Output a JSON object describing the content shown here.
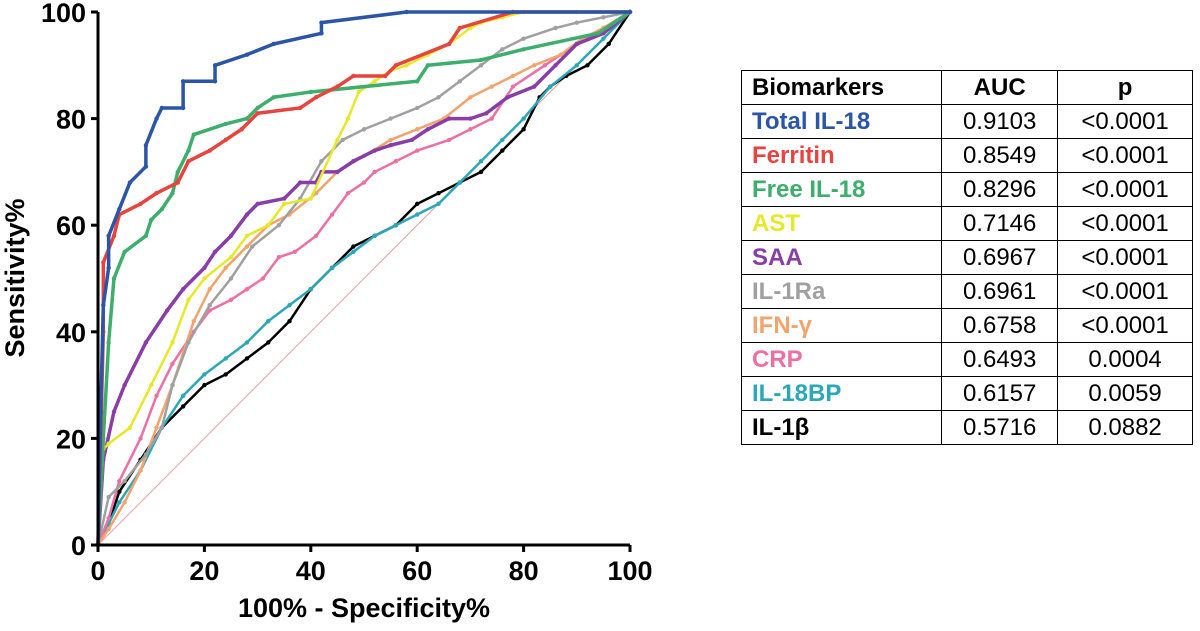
{
  "chart_data": {
    "type": "line",
    "xlabel": "100% - Specificity%",
    "ylabel": "Sensitivity%",
    "xlim": [
      0,
      100
    ],
    "ylim": [
      0,
      100
    ],
    "x_ticks": [
      "0",
      "20",
      "40",
      "60",
      "80",
      "100"
    ],
    "y_ticks": [
      "0",
      "20",
      "40",
      "60",
      "80",
      "100"
    ],
    "grid": false,
    "legend": "table-right",
    "reference_line": {
      "x": [
        0,
        100
      ],
      "y": [
        0,
        100
      ],
      "color": "#e8a0a0"
    },
    "series": [
      {
        "name": "Total IL-18",
        "color": "#2a55a8",
        "x": [
          0,
          0.5,
          1,
          2,
          2,
          4,
          6,
          9,
          9,
          11,
          12,
          16,
          16,
          22,
          22,
          28,
          33,
          42,
          42,
          58,
          100
        ],
        "y": [
          0,
          25,
          45,
          52,
          58,
          63,
          68,
          71,
          75,
          80,
          82,
          82,
          87,
          87,
          90,
          92,
          94,
          96,
          98,
          100,
          100
        ]
      },
      {
        "name": "Ferritin",
        "color": "#e8433c",
        "x": [
          0,
          1,
          1,
          3,
          4,
          8,
          11,
          15,
          17,
          21,
          24,
          27,
          30,
          38,
          41,
          45,
          48,
          54,
          56,
          66,
          68,
          78,
          100
        ],
        "y": [
          0,
          40,
          53,
          58,
          62,
          64,
          66,
          68,
          72,
          74,
          76,
          78,
          81,
          82,
          84,
          86,
          88,
          88,
          90,
          94,
          97,
          100,
          100
        ]
      },
      {
        "name": "Free IL-18",
        "color": "#3daf6c",
        "x": [
          0,
          1,
          2,
          3,
          5,
          9,
          10,
          12,
          14,
          15,
          17,
          18,
          24,
          28,
          30,
          33,
          40,
          60,
          62,
          72,
          80,
          94,
          100
        ],
        "y": [
          0,
          20,
          38,
          50,
          55,
          58,
          61,
          63,
          66,
          70,
          74,
          77,
          79,
          80,
          82,
          84,
          85,
          87,
          90,
          91,
          93,
          96,
          100
        ]
      },
      {
        "name": "AST",
        "color": "#e8e82a",
        "x": [
          0,
          1,
          2,
          6,
          10,
          14,
          17,
          20,
          25,
          28,
          32,
          35,
          40,
          45,
          47,
          49,
          52,
          55,
          58,
          62,
          66,
          70,
          72,
          76,
          80,
          90,
          100
        ],
        "y": [
          0,
          18,
          19,
          22,
          30,
          38,
          46,
          50,
          54,
          58,
          60,
          64,
          65,
          76,
          80,
          85,
          87,
          89,
          90,
          92,
          94,
          97,
          98,
          99,
          100,
          100,
          100
        ]
      },
      {
        "name": "SAA",
        "color": "#8a3da8",
        "x": [
          0,
          1,
          3,
          5,
          9,
          13,
          16,
          20,
          22,
          25,
          28,
          30,
          35,
          38,
          41,
          42,
          45,
          48,
          52,
          55,
          59,
          62,
          66,
          70,
          73,
          77,
          82,
          86,
          90,
          95,
          100
        ],
        "y": [
          0,
          16,
          25,
          30,
          38,
          44,
          48,
          52,
          55,
          58,
          62,
          64,
          65,
          68,
          68,
          70,
          70,
          72,
          74,
          75,
          76,
          78,
          80,
          80,
          81,
          84,
          86,
          90,
          94,
          96,
          100
        ]
      },
      {
        "name": "IL-1Ra",
        "color": "#a0a0a0",
        "x": [
          0,
          2,
          5,
          9,
          12,
          14,
          17,
          21,
          25,
          29,
          34,
          38,
          42,
          46,
          50,
          55,
          60,
          64,
          68,
          72,
          76,
          80,
          86,
          90,
          95,
          100
        ],
        "y": [
          0,
          9,
          12,
          17,
          22,
          30,
          38,
          45,
          50,
          56,
          60,
          65,
          72,
          76,
          78,
          80,
          82,
          84,
          87,
          90,
          93,
          95,
          97,
          98,
          99,
          100
        ]
      },
      {
        "name": "IFN-γ",
        "color": "#f4a36c",
        "x": [
          0,
          2,
          5,
          8,
          11,
          14,
          18,
          21,
          24,
          28,
          32,
          36,
          41,
          45,
          50,
          55,
          60,
          65,
          70,
          74,
          78,
          82,
          87,
          91,
          95,
          100
        ],
        "y": [
          0,
          3,
          8,
          14,
          22,
          30,
          42,
          48,
          52,
          56,
          60,
          62,
          66,
          70,
          73,
          76,
          78,
          80,
          84,
          86,
          88,
          90,
          92,
          95,
          97,
          100
        ]
      },
      {
        "name": "CRP",
        "color": "#ee6fa4",
        "x": [
          0,
          2,
          4,
          8,
          11,
          14,
          18,
          21,
          25,
          28,
          31,
          34,
          37,
          41,
          44,
          47,
          50,
          52,
          56,
          60,
          66,
          70,
          74,
          78,
          84,
          90,
          95,
          100
        ],
        "y": [
          0,
          5,
          12,
          20,
          28,
          34,
          40,
          44,
          46,
          48,
          50,
          54,
          55,
          58,
          62,
          66,
          68,
          70,
          72,
          74,
          76,
          78,
          80,
          86,
          90,
          94,
          97,
          100
        ]
      },
      {
        "name": "IL-18BP",
        "color": "#2aa8b8",
        "x": [
          0,
          2,
          4,
          8,
          12,
          16,
          20,
          24,
          28,
          32,
          36,
          40,
          44,
          48,
          52,
          56,
          60,
          64,
          68,
          72,
          76,
          80,
          85,
          90,
          95,
          100
        ],
        "y": [
          0,
          4,
          8,
          14,
          22,
          28,
          32,
          35,
          38,
          42,
          45,
          48,
          52,
          55,
          58,
          60,
          62,
          64,
          68,
          72,
          76,
          80,
          86,
          90,
          95,
          100
        ]
      },
      {
        "name": "IL-1β",
        "color": "#000000",
        "x": [
          0,
          2,
          4,
          8,
          12,
          16,
          20,
          24,
          28,
          32,
          36,
          40,
          44,
          48,
          52,
          56,
          60,
          64,
          68,
          72,
          76,
          80,
          83,
          85,
          88,
          92,
          96,
          100
        ],
        "y": [
          0,
          4,
          10,
          16,
          22,
          26,
          30,
          32,
          35,
          38,
          42,
          48,
          52,
          56,
          58,
          60,
          64,
          66,
          68,
          70,
          74,
          78,
          84,
          86,
          88,
          90,
          94,
          100
        ]
      }
    ]
  },
  "table": {
    "headers": [
      "Biomarkers",
      "AUC",
      "p"
    ],
    "rows": [
      {
        "name": "Total IL-18",
        "auc": "0.9103",
        "p": "<0.0001",
        "color": "#2a55a8"
      },
      {
        "name": "Ferritin",
        "auc": "0.8549",
        "p": "<0.0001",
        "color": "#e8433c"
      },
      {
        "name": "Free IL-18",
        "auc": "0.8296",
        "p": "<0.0001",
        "color": "#3daf6c"
      },
      {
        "name": "AST",
        "auc": "0.7146",
        "p": "<0.0001",
        "color": "#e8e82a"
      },
      {
        "name": "SAA",
        "auc": "0.6967",
        "p": "<0.0001",
        "color": "#8a3da8"
      },
      {
        "name": "IL-1Ra",
        "auc": "0.6961",
        "p": "<0.0001",
        "color": "#a0a0a0"
      },
      {
        "name": "IFN-γ",
        "auc": "0.6758",
        "p": "<0.0001",
        "color": "#f4a36c"
      },
      {
        "name": "CRP",
        "auc": "0.6493",
        "p": "0.0004",
        "color": "#ee6fa4"
      },
      {
        "name": "IL-18BP",
        "auc": "0.6157",
        "p": "0.0059",
        "color": "#2aa8b8"
      },
      {
        "name": "IL-1β",
        "auc": "0.5716",
        "p": "0.0882",
        "color": "#000000"
      }
    ]
  }
}
